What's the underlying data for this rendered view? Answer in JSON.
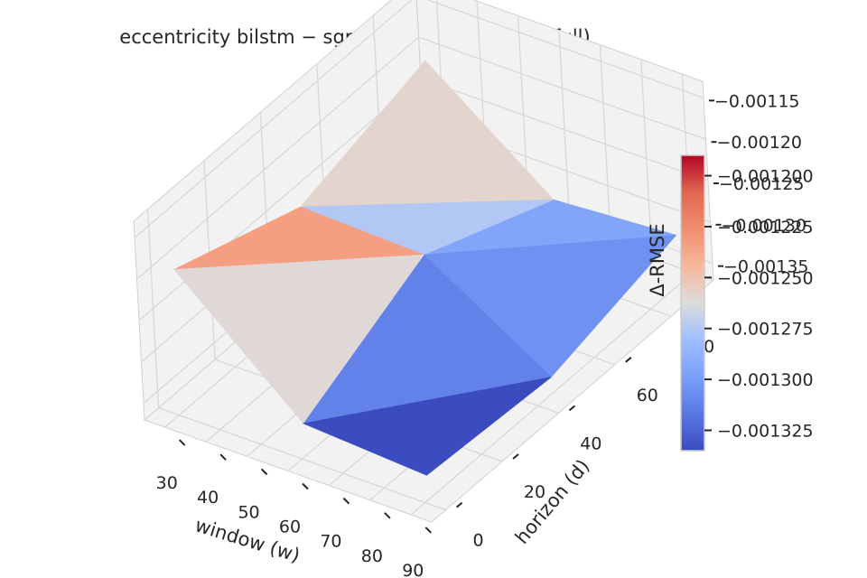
{
  "chart_data": {
    "type": "surface3d",
    "title": "eccentricity  bilstm − sgp4_monotonic  (span=full)",
    "xlabel": "window (w)",
    "ylabel": "horizon (d)",
    "zlabel": "Δ-RMSE",
    "x": [
      30,
      60,
      90
    ],
    "y": [
      1,
      45,
      90
    ],
    "z": [
      [
        -0.001197,
        -0.00133,
        -0.00134
      ],
      [
        -0.00125,
        -0.001255,
        -0.00135
      ],
      [
        -0.001205,
        -0.00132,
        -0.00131
      ]
    ],
    "x_ticks": [
      "30",
      "40",
      "50",
      "60",
      "70",
      "80",
      "90"
    ],
    "y_ticks": [
      "0",
      "20",
      "40",
      "60",
      "80"
    ],
    "z_ticks": [
      "−0.00115",
      "−0.00120",
      "−0.00125",
      "−0.00130",
      "−0.00135"
    ],
    "zlim": [
      -0.00137,
      -0.00113
    ],
    "colormap": "coolwarm",
    "colorbar": {
      "min": -0.001335,
      "max": -0.00119,
      "ticks": [
        "−0.001200",
        "−0.001225",
        "−0.001250",
        "−0.001275",
        "−0.001300",
        "−0.001325"
      ]
    }
  }
}
